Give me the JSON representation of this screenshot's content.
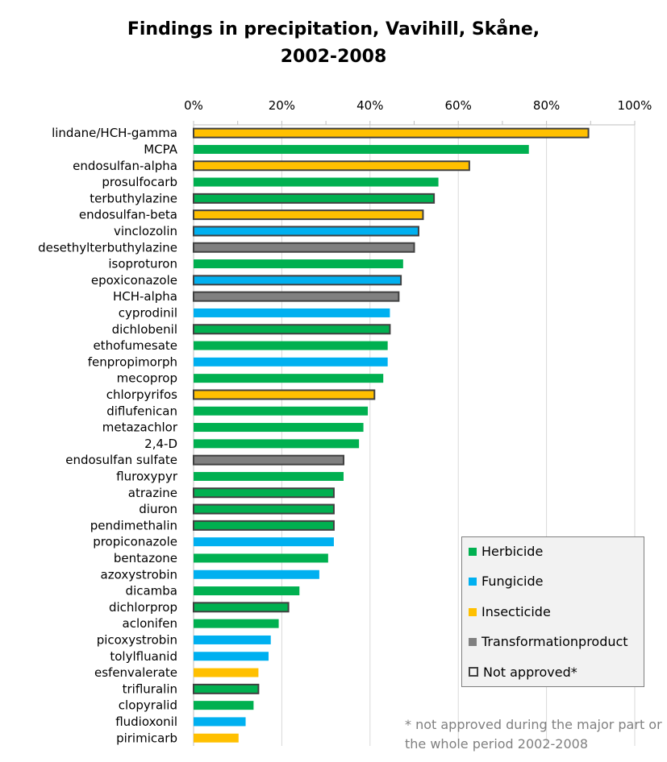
{
  "chart_data": {
    "type": "bar",
    "orientation": "horizontal",
    "title": "Findings in precipitation, Vavihill, Skåne, 2002-2008",
    "title_lines": [
      "Findings in precipitation, Vavihill, Skåne,",
      "2002-2008"
    ],
    "xlim": [
      0,
      100
    ],
    "x_unit": "%",
    "x_ticks": [
      "0%",
      "20%",
      "40%",
      "60%",
      "80%",
      "100%"
    ],
    "x_tick_values": [
      0,
      20,
      40,
      60,
      80,
      100
    ],
    "grid": true,
    "colors": {
      "Herbicide": "#00b050",
      "Fungicide": "#00b0f0",
      "Insecticide": "#ffc000",
      "Transformationproduct": "#808080",
      "outline": "#404040"
    },
    "bars": [
      {
        "name": "lindane/HCH-gamma",
        "value": 89.5,
        "category": "Insecticide",
        "not_approved": true
      },
      {
        "name": "MCPA",
        "value": 76,
        "category": "Herbicide",
        "not_approved": false
      },
      {
        "name": "endosulfan-alpha",
        "value": 62.5,
        "category": "Insecticide",
        "not_approved": true
      },
      {
        "name": "prosulfocarb",
        "value": 55.5,
        "category": "Herbicide",
        "not_approved": false
      },
      {
        "name": "terbuthylazine",
        "value": 54.5,
        "category": "Herbicide",
        "not_approved": true
      },
      {
        "name": "endosulfan-beta",
        "value": 52,
        "category": "Insecticide",
        "not_approved": true
      },
      {
        "name": "vinclozolin",
        "value": 51,
        "category": "Fungicide",
        "not_approved": true
      },
      {
        "name": "desethylterbuthylazine",
        "value": 50,
        "category": "Transformationproduct",
        "not_approved": true
      },
      {
        "name": "isoproturon",
        "value": 47.5,
        "category": "Herbicide",
        "not_approved": false
      },
      {
        "name": "epoxiconazole",
        "value": 47,
        "category": "Fungicide",
        "not_approved": true
      },
      {
        "name": "HCH-alpha",
        "value": 46.5,
        "category": "Transformationproduct",
        "not_approved": true
      },
      {
        "name": "cyprodinil",
        "value": 44.5,
        "category": "Fungicide",
        "not_approved": false
      },
      {
        "name": "dichlobenil",
        "value": 44.5,
        "category": "Herbicide",
        "not_approved": true
      },
      {
        "name": "ethofumesate",
        "value": 44,
        "category": "Herbicide",
        "not_approved": false
      },
      {
        "name": "fenpropimorph",
        "value": 44,
        "category": "Fungicide",
        "not_approved": false
      },
      {
        "name": "mecoprop",
        "value": 43,
        "category": "Herbicide",
        "not_approved": false
      },
      {
        "name": "chlorpyrifos",
        "value": 41,
        "category": "Insecticide",
        "not_approved": true
      },
      {
        "name": "diflufenican",
        "value": 39.5,
        "category": "Herbicide",
        "not_approved": false
      },
      {
        "name": "metazachlor",
        "value": 38.5,
        "category": "Herbicide",
        "not_approved": false
      },
      {
        "name": "2,4-D",
        "value": 37.5,
        "category": "Herbicide",
        "not_approved": false
      },
      {
        "name": "endosulfan sulfate",
        "value": 34,
        "category": "Transformationproduct",
        "not_approved": true
      },
      {
        "name": "fluroxypyr",
        "value": 34,
        "category": "Herbicide",
        "not_approved": false
      },
      {
        "name": "atrazine",
        "value": 31.8,
        "category": "Herbicide",
        "not_approved": true
      },
      {
        "name": "diuron",
        "value": 31.8,
        "category": "Herbicide",
        "not_approved": true
      },
      {
        "name": "pendimethalin",
        "value": 31.8,
        "category": "Herbicide",
        "not_approved": true
      },
      {
        "name": "propiconazole",
        "value": 31.8,
        "category": "Fungicide",
        "not_approved": false
      },
      {
        "name": "bentazone",
        "value": 30.5,
        "category": "Herbicide",
        "not_approved": false
      },
      {
        "name": "azoxystrobin",
        "value": 28.5,
        "category": "Fungicide",
        "not_approved": false
      },
      {
        "name": "dicamba",
        "value": 24,
        "category": "Herbicide",
        "not_approved": false
      },
      {
        "name": "dichlorprop",
        "value": 21.5,
        "category": "Herbicide",
        "not_approved": true
      },
      {
        "name": "aclonifen",
        "value": 19.3,
        "category": "Herbicide",
        "not_approved": false
      },
      {
        "name": "picoxystrobin",
        "value": 17.5,
        "category": "Fungicide",
        "not_approved": false
      },
      {
        "name": "tolylfluanid",
        "value": 17,
        "category": "Fungicide",
        "not_approved": false
      },
      {
        "name": "esfenvalerate",
        "value": 14.7,
        "category": "Insecticide",
        "not_approved": false
      },
      {
        "name": "trifluralin",
        "value": 14.7,
        "category": "Herbicide",
        "not_approved": true
      },
      {
        "name": "clopyralid",
        "value": 13.6,
        "category": "Herbicide",
        "not_approved": false
      },
      {
        "name": "fludioxonil",
        "value": 11.8,
        "category": "Fungicide",
        "not_approved": false
      },
      {
        "name": "pirimicarb",
        "value": 10.2,
        "category": "Insecticide",
        "not_approved": false
      }
    ],
    "legend": {
      "position": "bottom-right",
      "items": [
        {
          "label": "Herbicide",
          "color": "#00b050",
          "outline": false
        },
        {
          "label": "Fungicide",
          "color": "#00b0f0",
          "outline": false
        },
        {
          "label": "Insecticide",
          "color": "#ffc000",
          "outline": false
        },
        {
          "label": "Transformationproduct",
          "color": "#808080",
          "outline": false
        },
        {
          "label": "Not approved*",
          "color": "#f2f2f2",
          "outline": true
        }
      ]
    },
    "footnote": "* not approved during the major part or the whole period 2002-2008"
  }
}
